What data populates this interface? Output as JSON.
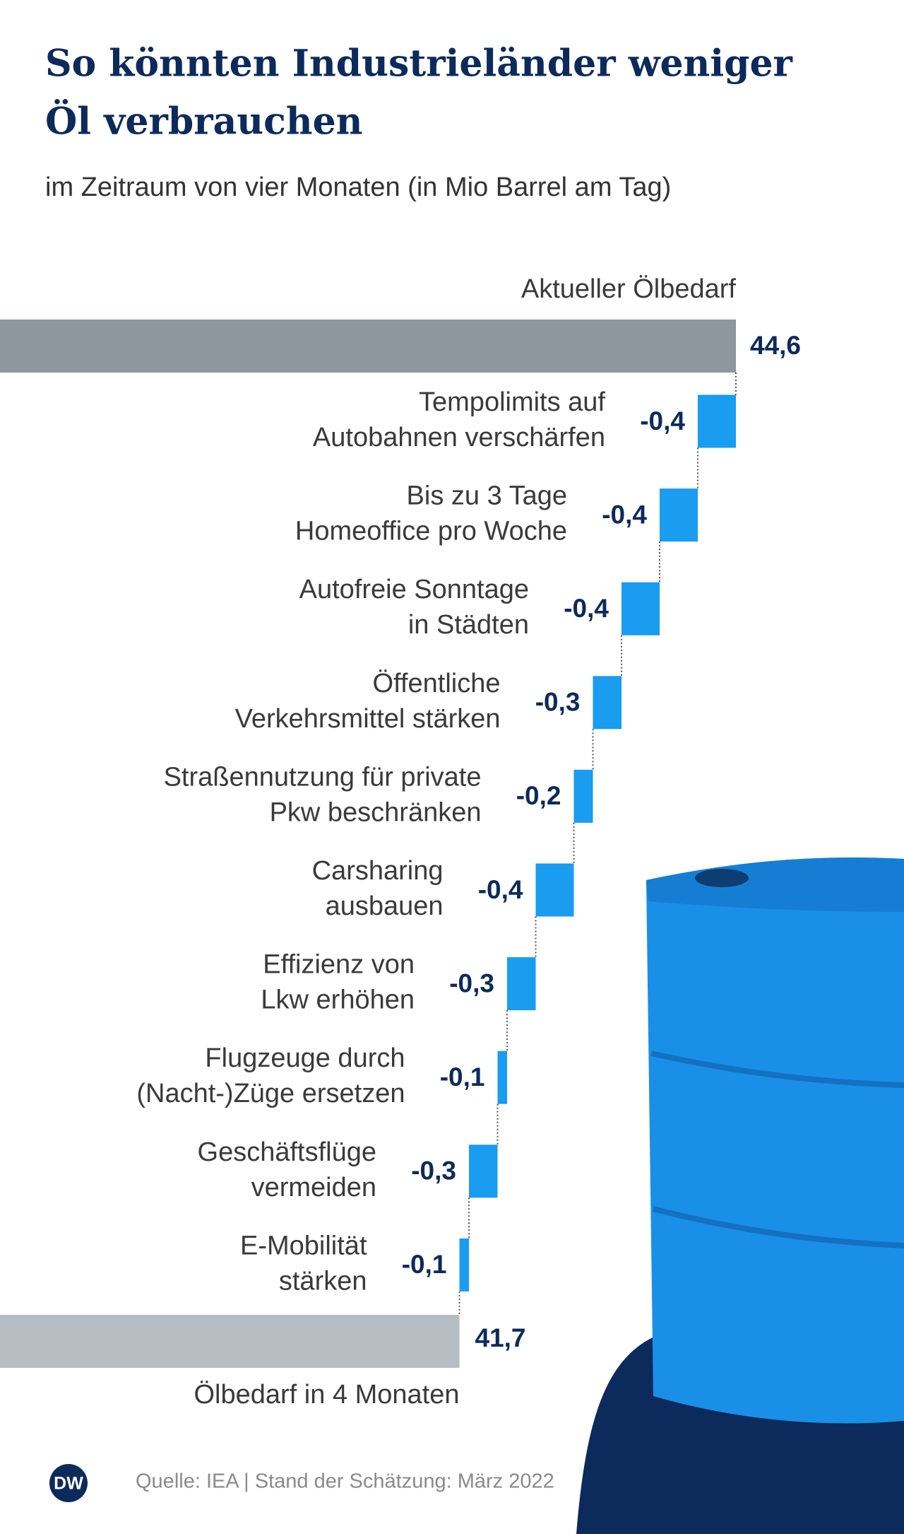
{
  "chart_data": {
    "type": "waterfall",
    "title": [
      "So könnten Industrieländer weniger",
      "Öl verbrauchen"
    ],
    "subtitle": "im Zeitraum von vier Monaten (in Mio Barrel am Tag)",
    "total_start": {
      "label": "Aktueller Ölbedarf",
      "value": 44.6,
      "value_label": "44,6",
      "color": "#8e979e"
    },
    "categories": [
      [
        "Tempolimits auf",
        "Autobahnen verschärfen"
      ],
      [
        "Bis zu 3 Tage",
        "Homeoffice pro Woche"
      ],
      [
        "Autofreie Sonntage",
        "in Städten"
      ],
      [
        "Öffentliche",
        "Verkehrsmittel stärken"
      ],
      [
        "Straßennutzung für private",
        "Pkw beschränken"
      ],
      [
        "Carsharing",
        "ausbauen"
      ],
      [
        "Effizienz von",
        "Lkw erhöhen"
      ],
      [
        "Flugzeuge durch",
        "(Nacht-)Züge ersetzen"
      ],
      [
        "Geschäftsflüge",
        "vermeiden"
      ],
      [
        "E-Mobilität",
        "stärken"
      ]
    ],
    "values": [
      -0.4,
      -0.4,
      -0.4,
      -0.3,
      -0.2,
      -0.4,
      -0.3,
      -0.1,
      -0.3,
      -0.1
    ],
    "value_labels": [
      "-0,4",
      "-0,4",
      "-0,4",
      "-0,3",
      "-0,2",
      "-0,4",
      "-0,3",
      "-0,1",
      "-0,3",
      "-0,1"
    ],
    "color": "#1a9cf0",
    "total_end": {
      "label": "Ölbedarf in 4 Monaten",
      "value": 41.7,
      "value_label": "41,7",
      "color": "#b7bec3"
    },
    "source": "Quelle: IEA | Stand der Schätzung: März 2022",
    "logo": "DW"
  }
}
